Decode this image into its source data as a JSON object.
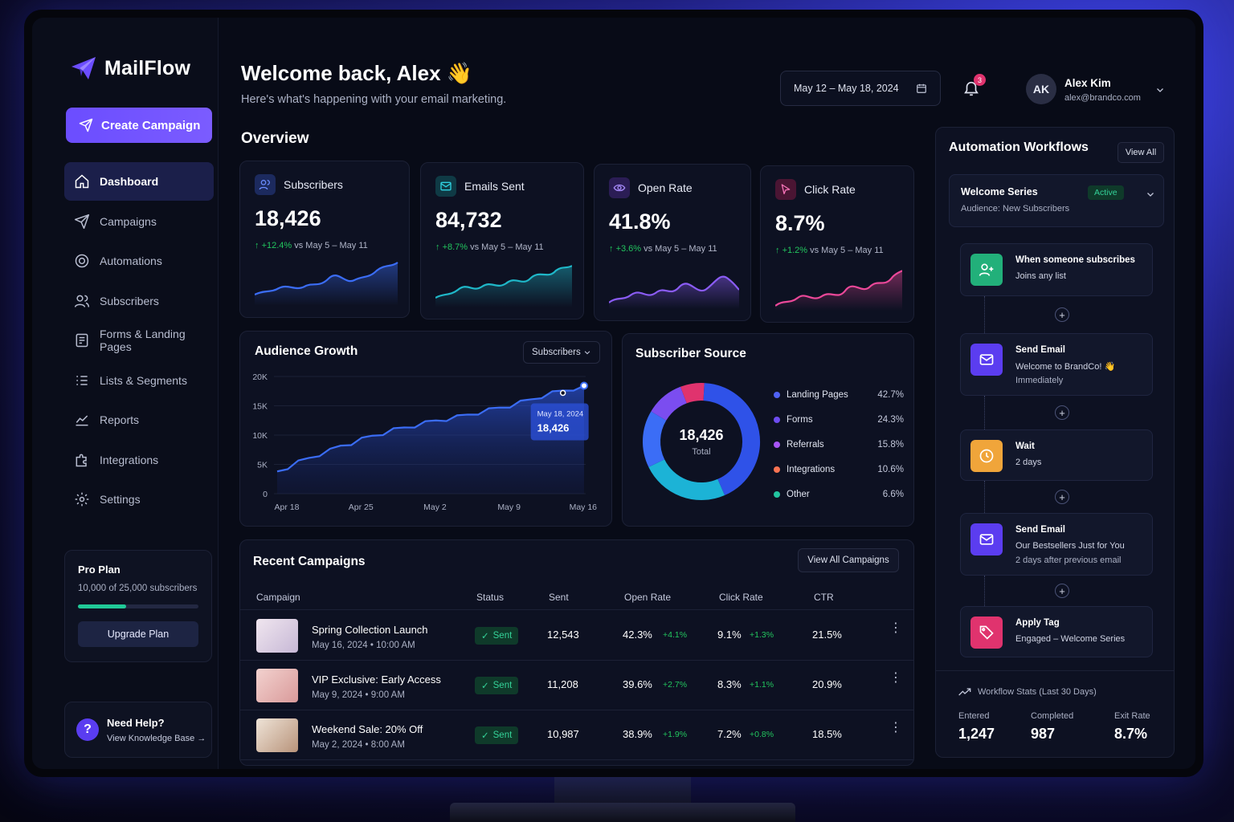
{
  "brand": {
    "name": "MailFlow"
  },
  "sidebar": {
    "create_label": "Create Campaign",
    "items": [
      {
        "label": "Dashboard"
      },
      {
        "label": "Campaigns"
      },
      {
        "label": "Automations"
      },
      {
        "label": "Subscribers"
      },
      {
        "label": "Forms & Landing Pages"
      },
      {
        "label": "Lists & Segments"
      },
      {
        "label": "Reports"
      },
      {
        "label": "Integrations"
      },
      {
        "label": "Settings"
      }
    ],
    "plan": {
      "title": "Pro Plan",
      "usage": "10,000 of 25,000 subscribers",
      "usage_fraction": 0.4,
      "upgrade_label": "Upgrade Plan"
    },
    "help": {
      "title": "Need Help?",
      "link": "View Knowledge Base →"
    }
  },
  "header": {
    "welcome": "Welcome back, Alex 👋",
    "subtitle": "Here's what's happening with your email marketing.",
    "date_range": "May 12 – May 18, 2024",
    "notifications": "3",
    "user": {
      "initials": "AK",
      "name": "Alex Kim",
      "email": "alex@brandco.com"
    }
  },
  "overview": {
    "title": "Overview",
    "kpis": [
      {
        "label": "Subscribers",
        "value": "18,426",
        "delta": "+12.4%",
        "compare": "vs May 5 – May 11",
        "color": "#3b6df6"
      },
      {
        "label": "Emails Sent",
        "value": "84,732",
        "delta": "+8.7%",
        "compare": "vs May 5 – May 11",
        "color": "#1fb8c9"
      },
      {
        "label": "Open Rate",
        "value": "41.8%",
        "delta": "+3.6%",
        "compare": "vs May 5 – May 11",
        "color": "#8b5cf6"
      },
      {
        "label": "Click Rate",
        "value": "8.7%",
        "delta": "+1.2%",
        "compare": "vs May 5 – May 11",
        "color": "#ec4899"
      }
    ]
  },
  "growth": {
    "title": "Audience Growth",
    "select": "Subscribers",
    "tooltip_date": "May 18, 2024",
    "tooltip_value": "18,426"
  },
  "chart_data": {
    "type": "area",
    "title": "Audience Growth",
    "xlabel": "",
    "ylabel": "",
    "x_ticks": [
      "Apr 18",
      "Apr 25",
      "May 2",
      "May 9",
      "May 16"
    ],
    "y_ticks": [
      "0",
      "5K",
      "10K",
      "15K",
      "20K"
    ],
    "ylim": [
      0,
      20000
    ],
    "series": [
      {
        "values": [
          3800,
          4600,
          5400,
          6100,
          6800,
          7400,
          8200,
          8700,
          9300,
          9900,
          10400,
          10900,
          11300,
          11700,
          12100,
          12500,
          12800,
          13100,
          13500,
          13900,
          14300,
          14700,
          15100,
          15600,
          16100,
          16700,
          17200,
          17600,
          18000,
          18426
        ]
      }
    ]
  },
  "source": {
    "title": "Subscriber Source",
    "total_value": "18,426",
    "total_label": "Total",
    "items": [
      {
        "label": "Landing Pages",
        "pct": "42.7%",
        "value": 42.7,
        "color": "#2f52e8"
      },
      {
        "label": "Forms",
        "pct": "24.3%",
        "value": 24.3,
        "color": "#1cb3d6"
      },
      {
        "label": "Referrals",
        "pct": "15.8%",
        "value": 15.8,
        "color": "#3b6df6"
      },
      {
        "label": "Integrations",
        "pct": "10.6%",
        "value": 10.6,
        "color": "#7b4df0"
      },
      {
        "label": "Other",
        "pct": "6.6%",
        "value": 6.6,
        "color": "#e0336e"
      }
    ],
    "legend_colors": [
      "#4f62f5",
      "#6d4cf0",
      "#a855f7",
      "#f97352",
      "#22c5a0"
    ]
  },
  "campaigns": {
    "title": "Recent Campaigns",
    "view_all": "View All Campaigns",
    "columns": [
      "Campaign",
      "Status",
      "Sent",
      "Open Rate",
      "Click Rate",
      "CTR"
    ],
    "rows": [
      {
        "name": "Spring Collection Launch",
        "date": "May 16, 2024  •  10:00 AM",
        "status": "Sent",
        "sent": "12,543",
        "open": "42.3%",
        "open_delta": "+4.1%",
        "click": "9.1%",
        "click_delta": "+1.3%",
        "ctr": "21.5%"
      },
      {
        "name": "VIP Exclusive: Early Access",
        "date": "May 9, 2024  •  9:00 AM",
        "status": "Sent",
        "sent": "11,208",
        "open": "39.6%",
        "open_delta": "+2.7%",
        "click": "8.3%",
        "click_delta": "+1.1%",
        "ctr": "20.9%"
      },
      {
        "name": "Weekend Sale: 20% Off",
        "date": "May 2, 2024  •  8:00 AM",
        "status": "Sent",
        "sent": "10,987",
        "open": "38.9%",
        "open_delta": "+1.9%",
        "click": "7.2%",
        "click_delta": "+0.8%",
        "ctr": "18.5%"
      }
    ]
  },
  "automation": {
    "title": "Automation Workflows",
    "view_all": "View All",
    "series": {
      "title": "Welcome Series",
      "status": "Active",
      "audience": "Audience: New Subscribers"
    },
    "steps": [
      {
        "title": "When someone subscribes",
        "l1": "Joins any list",
        "l2": "",
        "color": "#22b07a"
      },
      {
        "title": "Send Email",
        "l1": "Welcome to BrandCo! 👋",
        "l2": "Immediately",
        "color": "#5b3df0"
      },
      {
        "title": "Wait",
        "l1": "2 days",
        "l2": "",
        "color": "#f0a53a"
      },
      {
        "title": "Send Email",
        "l1": "Our Bestsellers Just for You",
        "l2": "2 days after previous email",
        "color": "#5b3df0"
      },
      {
        "title": "Apply Tag",
        "l1": "Engaged – Welcome Series",
        "l2": "",
        "color": "#e0336e"
      }
    ],
    "stats": {
      "title": "Workflow Stats (Last 30 Days)",
      "entered_label": "Entered",
      "entered": "1,247",
      "completed_label": "Completed",
      "completed": "987",
      "exit_label": "Exit Rate",
      "exit": "8.7%"
    }
  }
}
